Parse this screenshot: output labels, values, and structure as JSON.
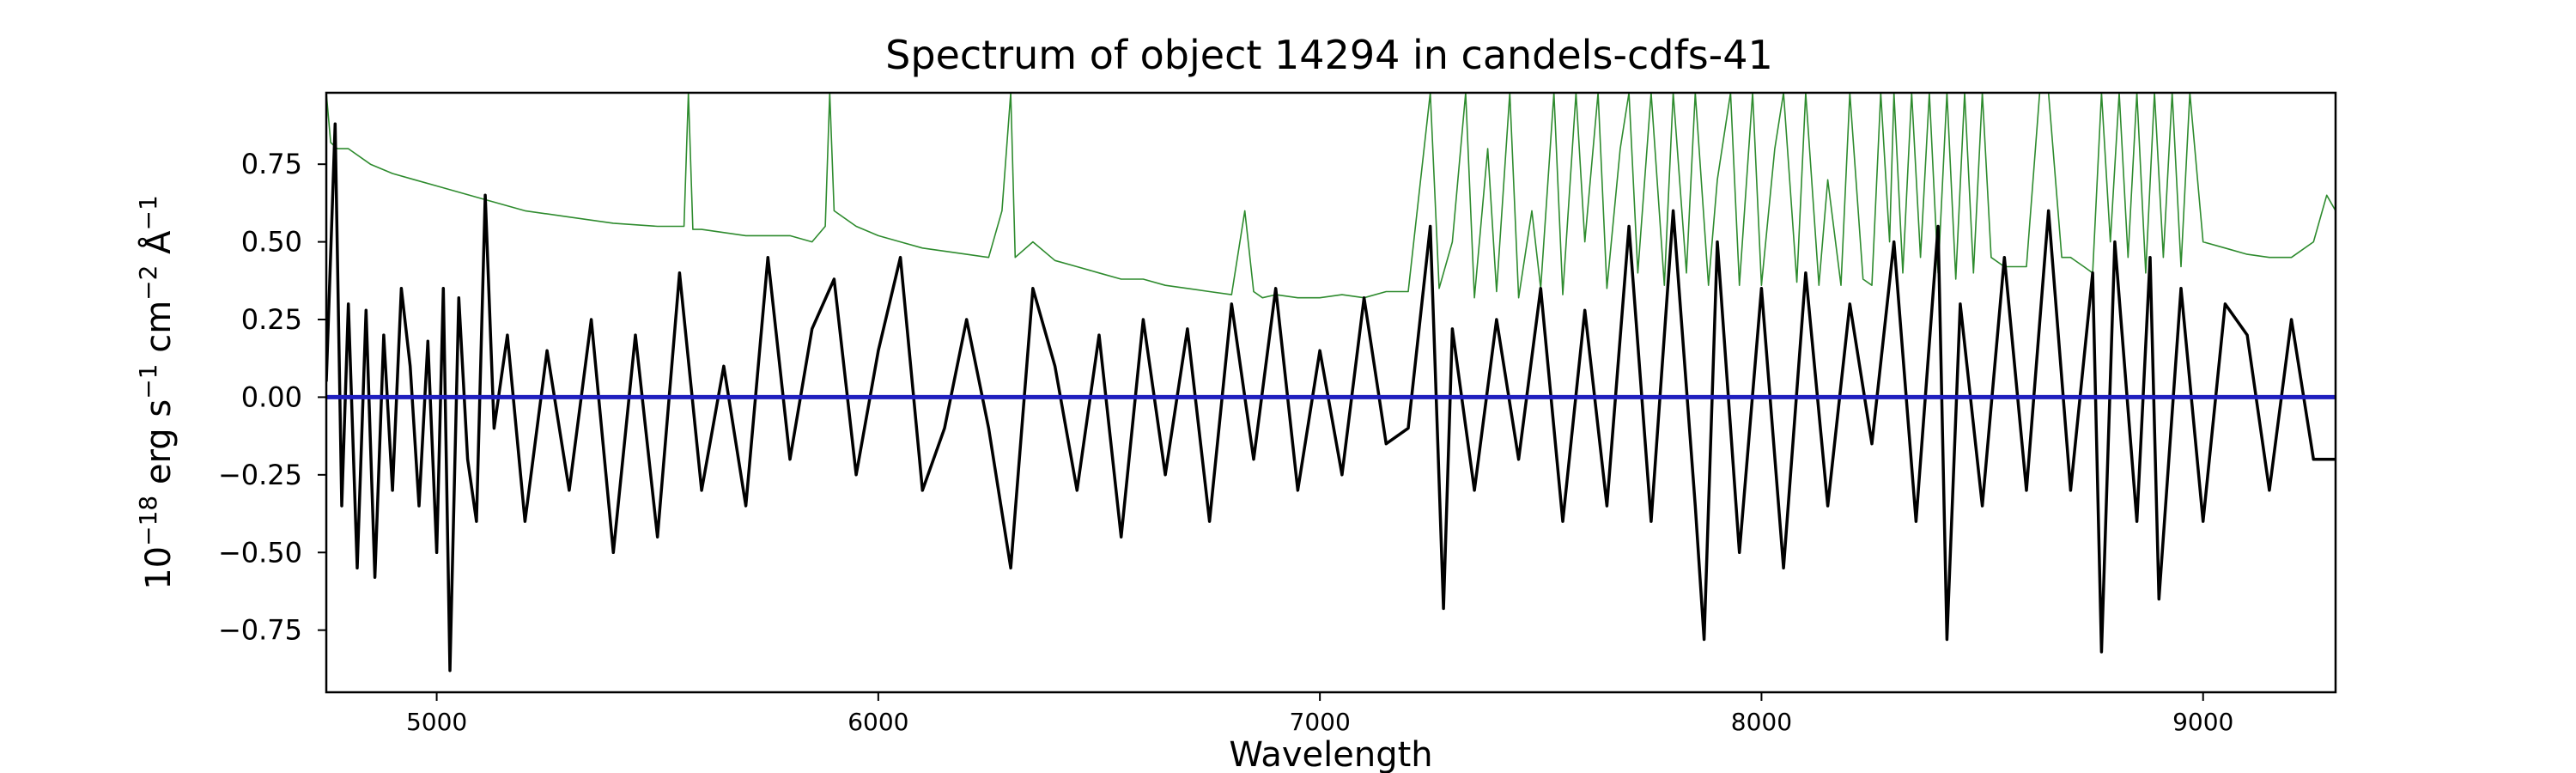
{
  "chart_data": {
    "type": "line",
    "title": "Spectrum of object 14294 in candels-cdfs-41",
    "xlabel": "Wavelength",
    "ylabel": "10^{-18} erg s^{-1} cm^{-2} Å^{-1}",
    "xlim": [
      4750,
      9300
    ],
    "ylim": [
      -0.95,
      0.98
    ],
    "xticks": [
      5000,
      6000,
      7000,
      8000,
      9000
    ],
    "xtick_labels": [
      "5000",
      "6000",
      "7000",
      "8000",
      "9000"
    ],
    "yticks": [
      0.75,
      0.5,
      0.25,
      0.0,
      -0.25,
      -0.5,
      -0.75
    ],
    "ytick_labels": [
      "0.75",
      "0.50",
      "0.25",
      "0.00",
      "−0.25",
      "−0.50",
      "−0.75"
    ],
    "grid": false,
    "series": [
      {
        "color": "#000000",
        "x": [
          4750,
          4770,
          4785,
          4800,
          4820,
          4840,
          4860,
          4880,
          4900,
          4920,
          4940,
          4960,
          4980,
          5000,
          5015,
          5030,
          5050,
          5070,
          5090,
          5110,
          5130,
          5160,
          5200,
          5250,
          5300,
          5350,
          5400,
          5450,
          5500,
          5550,
          5600,
          5650,
          5700,
          5750,
          5800,
          5850,
          5900,
          5950,
          6000,
          6050,
          6100,
          6150,
          6200,
          6250,
          6300,
          6350,
          6400,
          6450,
          6500,
          6550,
          6600,
          6650,
          6700,
          6750,
          6800,
          6850,
          6900,
          6950,
          7000,
          7050,
          7100,
          7150,
          7200,
          7250,
          7280,
          7300,
          7350,
          7400,
          7450,
          7500,
          7550,
          7600,
          7650,
          7700,
          7750,
          7800,
          7850,
          7870,
          7900,
          7950,
          8000,
          8050,
          8100,
          8150,
          8200,
          8250,
          8300,
          8350,
          8400,
          8420,
          8450,
          8500,
          8550,
          8600,
          8650,
          8700,
          8750,
          8770,
          8800,
          8850,
          8880,
          8900,
          8950,
          9000,
          9050,
          9100,
          9150,
          9200,
          9250,
          9300
        ],
        "y": [
          0.05,
          0.88,
          -0.35,
          0.3,
          -0.55,
          0.28,
          -0.58,
          0.2,
          -0.3,
          0.35,
          0.1,
          -0.35,
          0.18,
          -0.5,
          0.35,
          -0.88,
          0.32,
          -0.2,
          -0.4,
          0.65,
          -0.1,
          0.2,
          -0.4,
          0.15,
          -0.3,
          0.25,
          -0.5,
          0.2,
          -0.45,
          0.4,
          -0.3,
          0.1,
          -0.35,
          0.45,
          -0.2,
          0.22,
          0.38,
          -0.25,
          0.15,
          0.45,
          -0.3,
          -0.1,
          0.25,
          -0.1,
          -0.55,
          0.35,
          0.1,
          -0.3,
          0.2,
          -0.45,
          0.25,
          -0.25,
          0.22,
          -0.4,
          0.3,
          -0.2,
          0.35,
          -0.3,
          0.15,
          -0.25,
          0.32,
          -0.15,
          -0.1,
          0.55,
          -0.68,
          0.22,
          -0.3,
          0.25,
          -0.2,
          0.35,
          -0.4,
          0.28,
          -0.35,
          0.55,
          -0.4,
          0.6,
          -0.35,
          -0.78,
          0.5,
          -0.5,
          0.35,
          -0.55,
          0.4,
          -0.35,
          0.3,
          -0.15,
          0.5,
          -0.4,
          0.55,
          -0.78,
          0.3,
          -0.35,
          0.45,
          -0.3,
          0.6,
          -0.3,
          0.4,
          -0.82,
          0.5,
          -0.4,
          0.45,
          -0.65,
          0.35,
          -0.4,
          0.3,
          0.2,
          -0.3,
          0.25,
          -0.2,
          -0.2
        ]
      },
      {
        "color": "#2e8b2e",
        "x": [
          4750,
          4760,
          4775,
          4800,
          4850,
          4900,
          4950,
          5000,
          5100,
          5200,
          5300,
          5400,
          5500,
          5560,
          5570,
          5580,
          5600,
          5700,
          5800,
          5850,
          5880,
          5890,
          5900,
          5950,
          6000,
          6050,
          6100,
          6150,
          6200,
          6250,
          6280,
          6300,
          6310,
          6350,
          6400,
          6450,
          6500,
          6550,
          6600,
          6650,
          6700,
          6750,
          6800,
          6830,
          6850,
          6870,
          6900,
          6950,
          7000,
          7050,
          7100,
          7150,
          7200,
          7250,
          7270,
          7300,
          7330,
          7350,
          7380,
          7400,
          7430,
          7450,
          7480,
          7500,
          7530,
          7550,
          7580,
          7600,
          7630,
          7650,
          7680,
          7700,
          7720,
          7750,
          7780,
          7800,
          7830,
          7850,
          7880,
          7900,
          7930,
          7950,
          7980,
          8000,
          8030,
          8050,
          8080,
          8100,
          8130,
          8150,
          8180,
          8200,
          8230,
          8250,
          8270,
          8290,
          8300,
          8320,
          8340,
          8360,
          8380,
          8400,
          8420,
          8440,
          8460,
          8480,
          8500,
          8520,
          8550,
          8600,
          8630,
          8650,
          8680,
          8700,
          8730,
          8750,
          8770,
          8790,
          8810,
          8830,
          8850,
          8870,
          8890,
          8910,
          8930,
          8950,
          8970,
          9000,
          9050,
          9100,
          9150,
          9200,
          9250,
          9280,
          9300
        ],
        "y": [
          0.98,
          0.82,
          0.8,
          0.8,
          0.75,
          0.72,
          0.7,
          0.68,
          0.64,
          0.6,
          0.58,
          0.56,
          0.55,
          0.55,
          0.98,
          0.54,
          0.54,
          0.52,
          0.52,
          0.5,
          0.55,
          0.98,
          0.6,
          0.55,
          0.52,
          0.5,
          0.48,
          0.47,
          0.46,
          0.45,
          0.6,
          0.98,
          0.45,
          0.5,
          0.44,
          0.42,
          0.4,
          0.38,
          0.38,
          0.36,
          0.35,
          0.34,
          0.33,
          0.6,
          0.34,
          0.32,
          0.33,
          0.32,
          0.32,
          0.33,
          0.32,
          0.34,
          0.34,
          0.98,
          0.35,
          0.5,
          0.98,
          0.32,
          0.8,
          0.34,
          0.98,
          0.32,
          0.6,
          0.35,
          0.98,
          0.33,
          0.98,
          0.5,
          0.98,
          0.35,
          0.8,
          0.98,
          0.4,
          0.98,
          0.36,
          0.98,
          0.4,
          0.98,
          0.36,
          0.7,
          0.98,
          0.36,
          0.98,
          0.36,
          0.8,
          0.98,
          0.37,
          0.98,
          0.36,
          0.7,
          0.36,
          0.98,
          0.38,
          0.36,
          0.98,
          0.5,
          0.98,
          0.4,
          0.98,
          0.45,
          0.98,
          0.4,
          0.98,
          0.38,
          0.98,
          0.4,
          0.98,
          0.45,
          0.42,
          0.42,
          0.98,
          0.98,
          0.45,
          0.45,
          0.42,
          0.4,
          0.98,
          0.5,
          0.98,
          0.45,
          0.98,
          0.4,
          0.98,
          0.45,
          0.98,
          0.42,
          0.98,
          0.5,
          0.48,
          0.46,
          0.45,
          0.45,
          0.5,
          0.65,
          0.6
        ]
      },
      {
        "color": "#1f1fbf",
        "x": [
          4750,
          9300
        ],
        "y": [
          0.0,
          0.0
        ]
      }
    ]
  }
}
